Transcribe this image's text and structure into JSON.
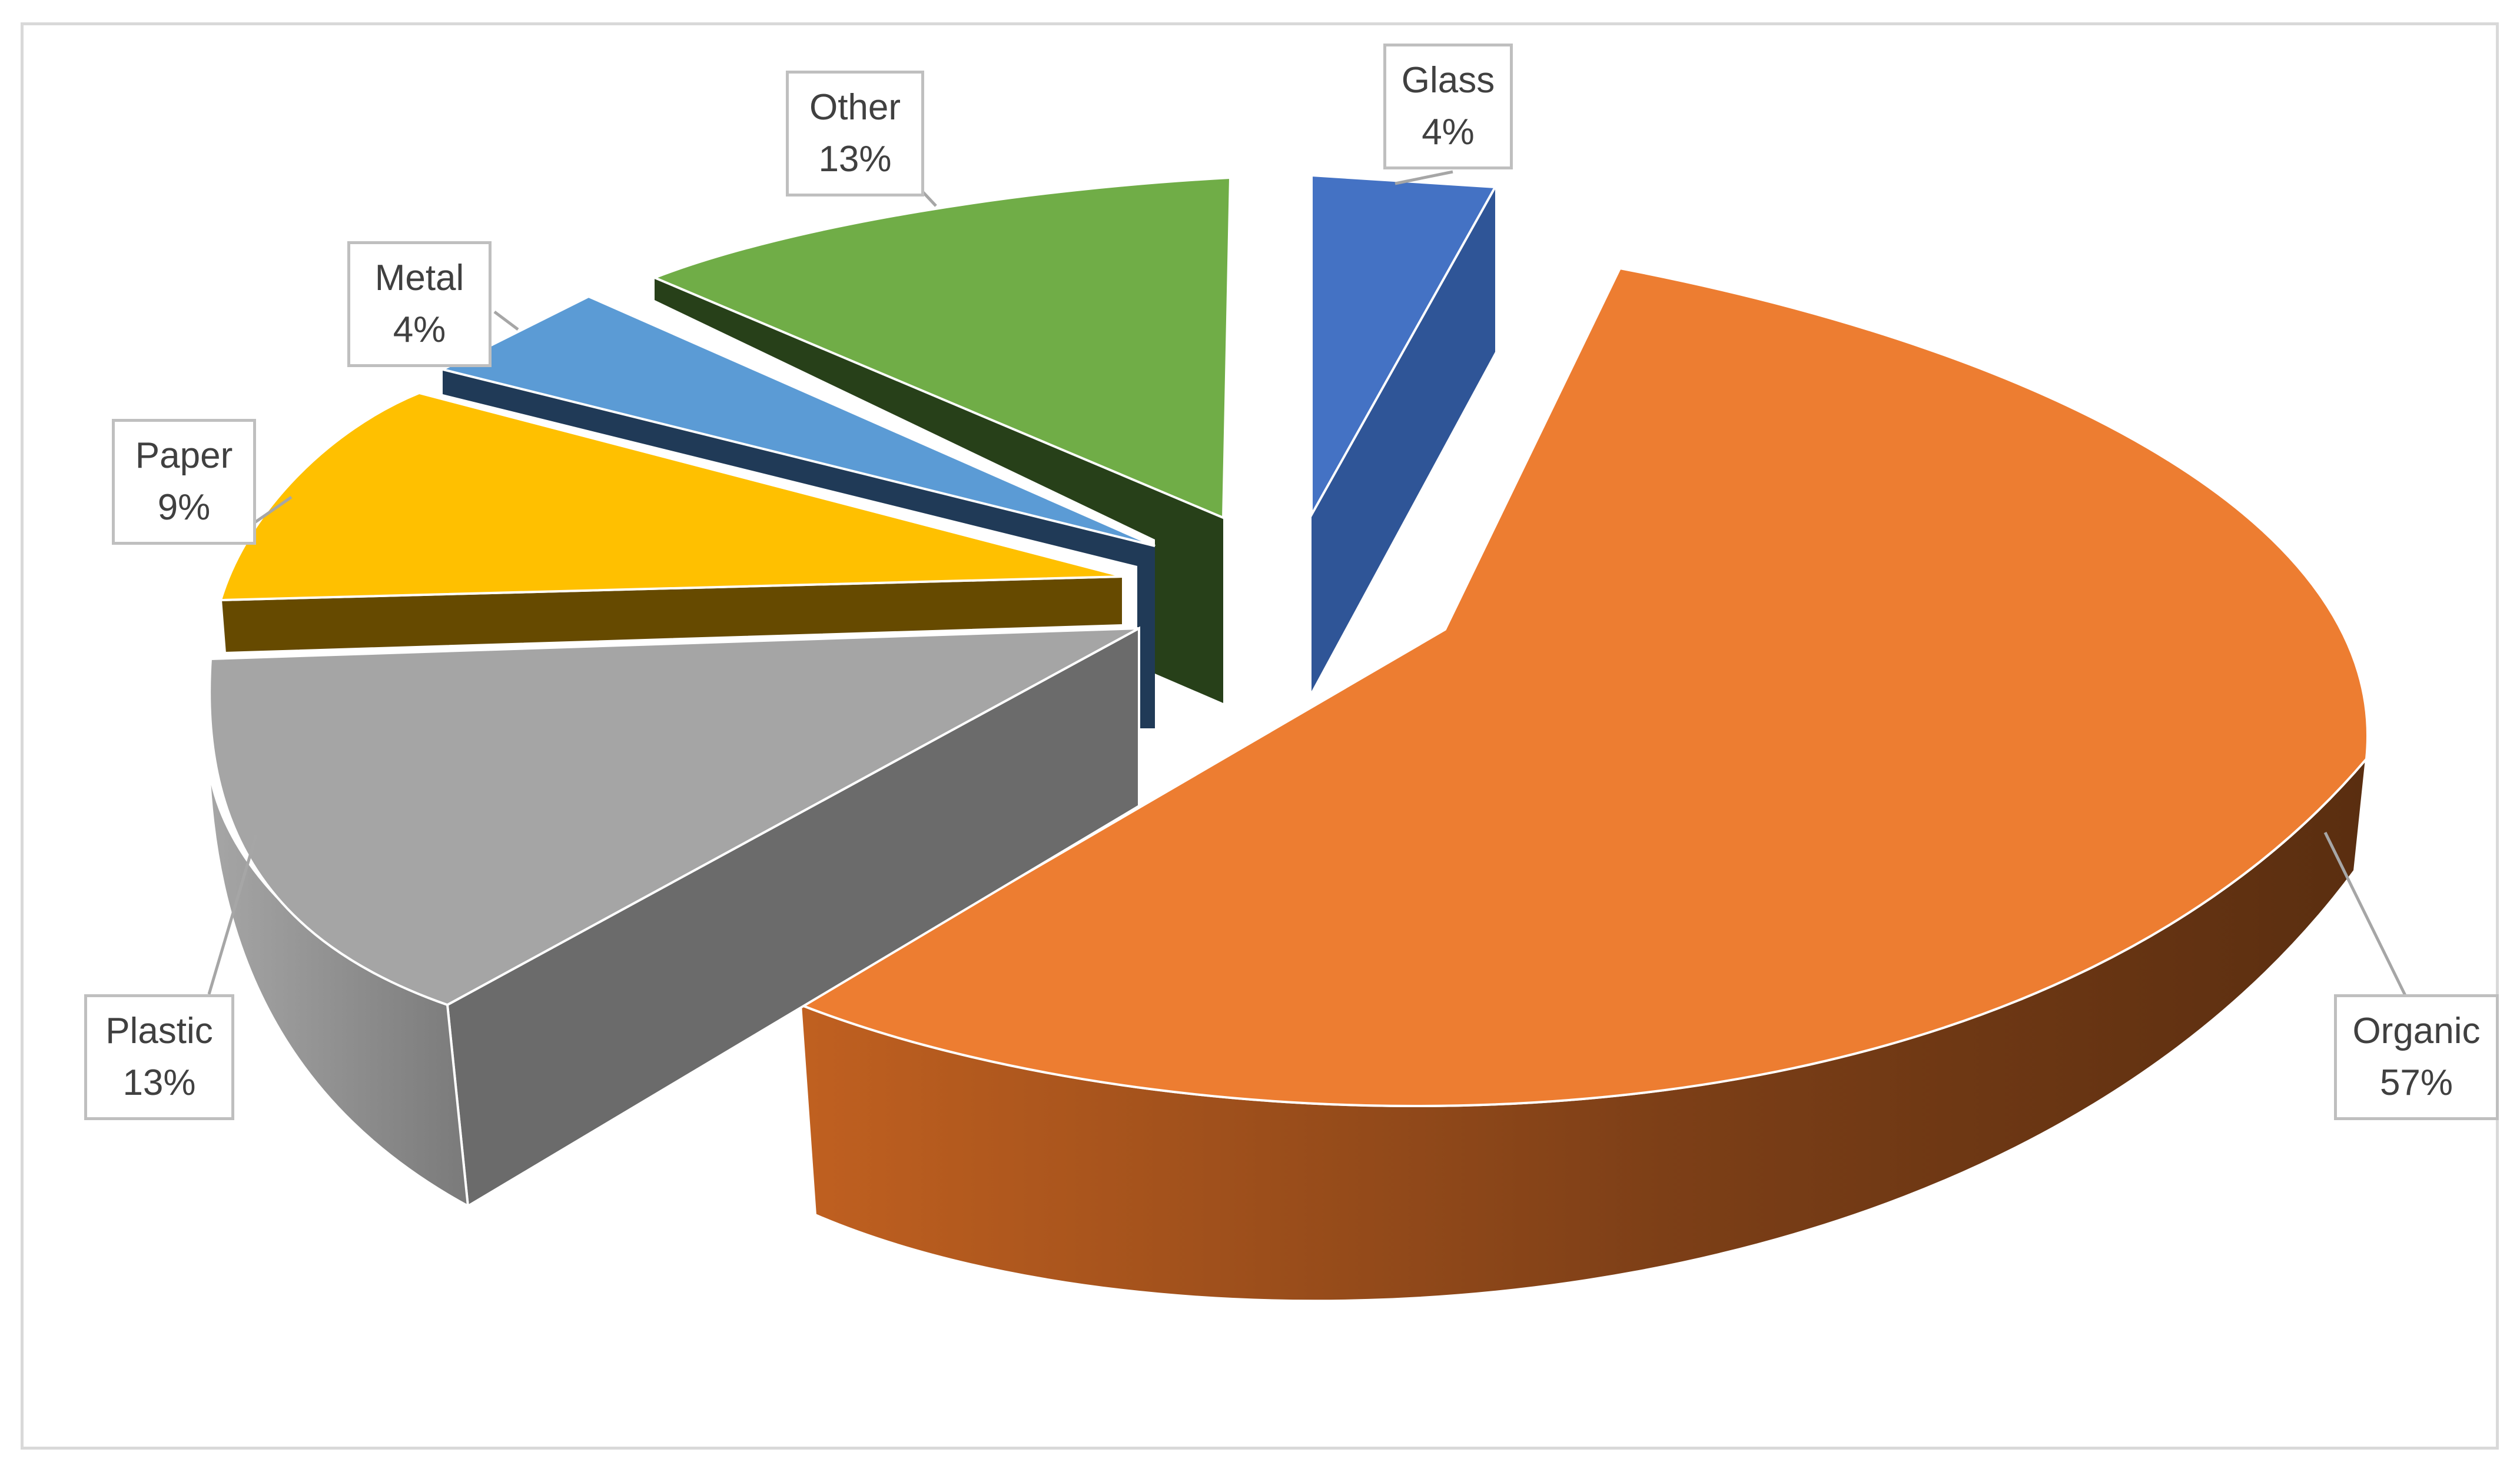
{
  "chart_data": {
    "type": "pie",
    "style": "3d-exploded",
    "title": "",
    "legend": "none",
    "slices": [
      {
        "name": "Glass",
        "label": "4%",
        "value": 4,
        "color": "#4472c4"
      },
      {
        "name": "Organic",
        "label": "57%",
        "value": 57,
        "color": "#ed7d31"
      },
      {
        "name": "Plastic",
        "label": "13%",
        "value": 13,
        "color": "#a5a5a5"
      },
      {
        "name": "Paper",
        "label": "9%",
        "value": 9,
        "color": "#ffc000"
      },
      {
        "name": "Metal",
        "label": "4%",
        "value": 4,
        "color": "#5b9bd5"
      },
      {
        "name": "Other",
        "label": "13%",
        "value": 13,
        "color": "#70ad47"
      }
    ]
  }
}
